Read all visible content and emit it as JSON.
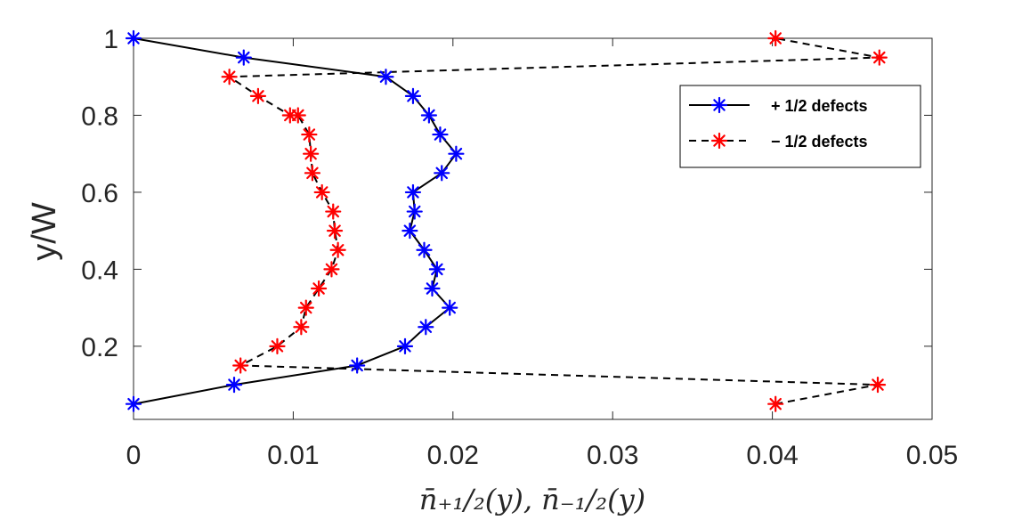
{
  "chart_data": {
    "type": "line",
    "title": "",
    "xlabel": "n̄₊₁/₂(y),  n̄₋₁/₂(y)",
    "ylabel": "y/W",
    "xlim": [
      0,
      0.05
    ],
    "ylim": [
      0.01,
      1.0
    ],
    "xticks": [
      0,
      0.01,
      0.02,
      0.03,
      0.04,
      0.05
    ],
    "xtick_labels": [
      "0",
      "0.01",
      "0.02",
      "0.03",
      "0.04",
      "0.05"
    ],
    "yticks": [
      0.2,
      0.4,
      0.6,
      0.8,
      1.0
    ],
    "ytick_labels": [
      "0.2",
      "0.4",
      "0.6",
      "0.8",
      "1"
    ],
    "grid": false,
    "legend_position": "top-right",
    "series": [
      {
        "name": "+ 1/2 defects",
        "color": "#0000ff",
        "line_color": "#000000",
        "line_style": "solid",
        "marker": "asterisk",
        "x": [
          0.0,
          0.0063,
          0.014,
          0.017,
          0.0183,
          0.0198,
          0.0187,
          0.019,
          0.0182,
          0.0173,
          0.0176,
          0.0175,
          0.0193,
          0.0202,
          0.0192,
          0.0185,
          0.0175,
          0.0158,
          0.0069,
          0.0
        ],
        "y": [
          0.05,
          0.1,
          0.15,
          0.2,
          0.25,
          0.3,
          0.35,
          0.4,
          0.45,
          0.5,
          0.55,
          0.6,
          0.65,
          0.7,
          0.75,
          0.8,
          0.85,
          0.9,
          0.95,
          1.0
        ]
      },
      {
        "name": "− 1/2 defects",
        "color": "#ff0000",
        "line_color": "#000000",
        "line_style": "dashed",
        "marker": "asterisk",
        "x": [
          0.0402,
          0.0466,
          0.0067,
          0.009,
          0.0105,
          0.0108,
          0.0116,
          0.0124,
          0.0128,
          0.0126,
          0.0125,
          0.0118,
          0.0112,
          0.0111,
          0.011,
          0.0103,
          0.0098,
          0.0078,
          0.006,
          0.0467,
          0.0402
        ],
        "y": [
          0.05,
          0.1,
          0.15,
          0.2,
          0.25,
          0.3,
          0.35,
          0.4,
          0.45,
          0.5,
          0.55,
          0.6,
          0.65,
          0.7,
          0.75,
          0.8,
          0.8,
          0.85,
          0.9,
          0.95,
          1.0
        ]
      }
    ]
  }
}
